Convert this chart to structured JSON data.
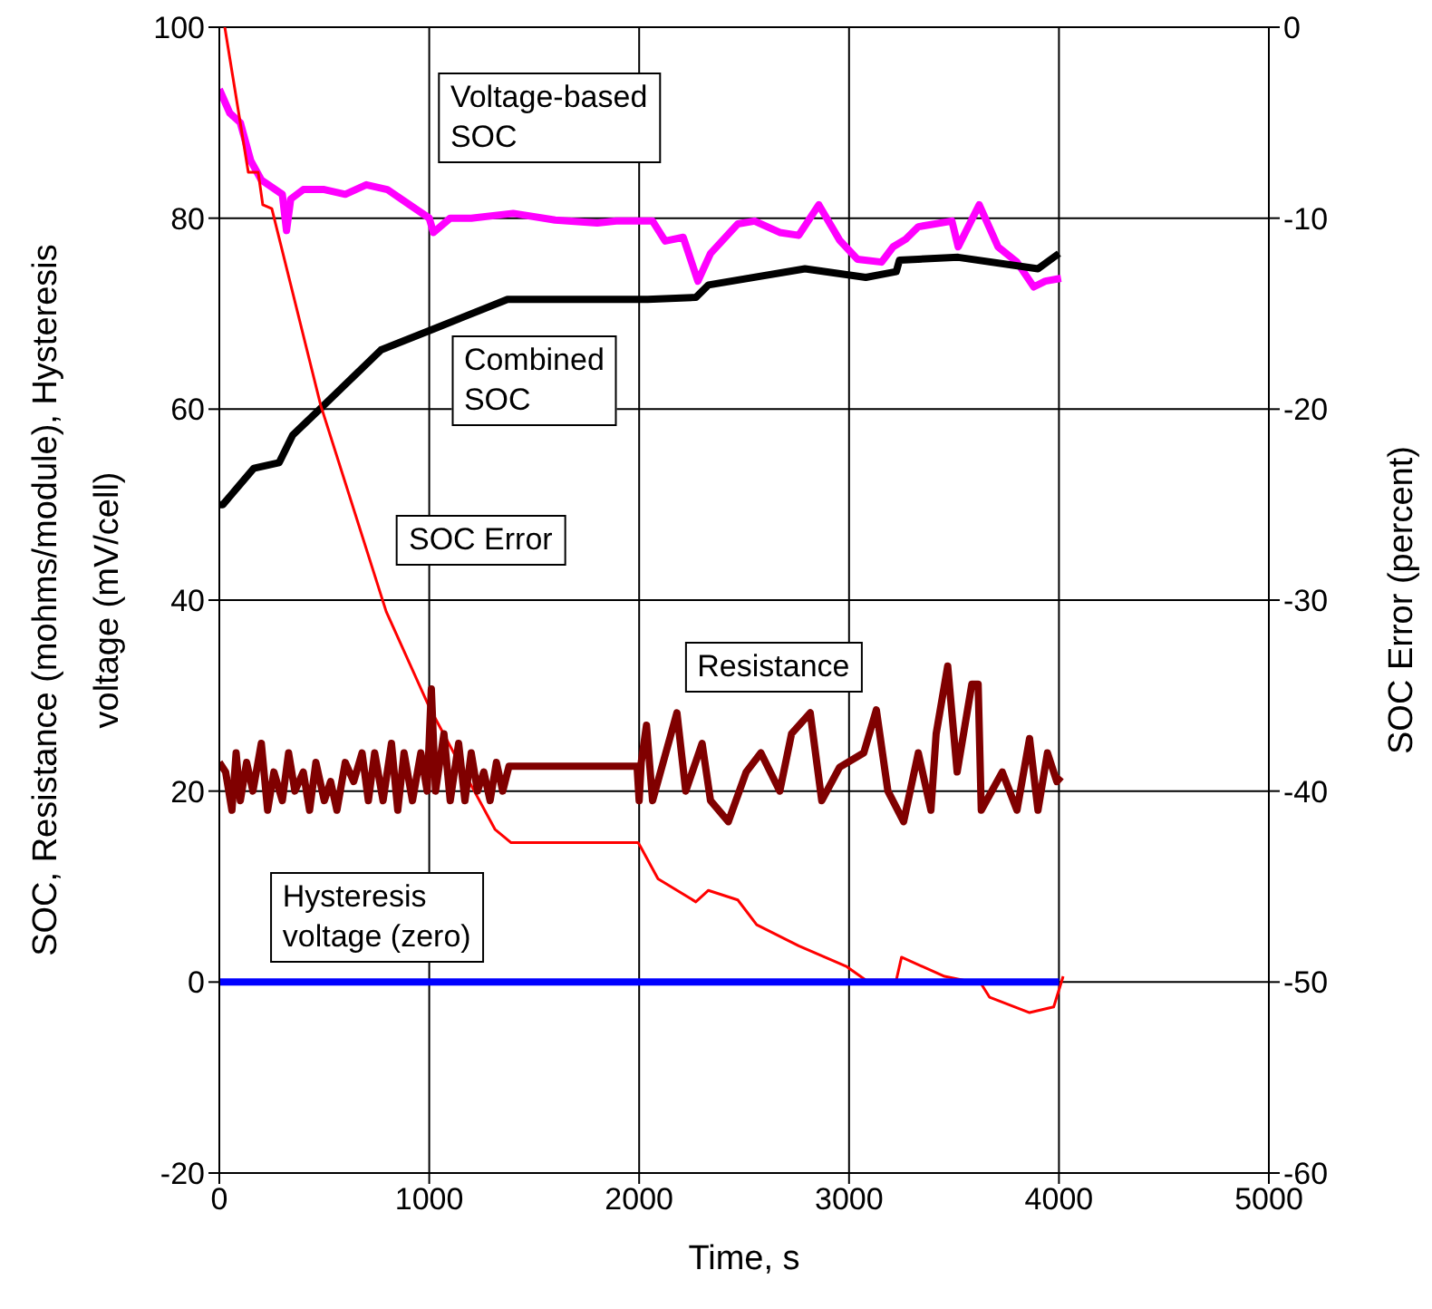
{
  "chart_data": {
    "type": "line",
    "xlabel": "Time, s",
    "ylabel": "SOC, Resistance (mohms/module), Hysteresis voltage (mV/cell)",
    "y2label": "SOC Error (percent)",
    "xlim": [
      0,
      5000
    ],
    "xticks": [
      0,
      1000,
      2000,
      3000,
      4000,
      5000
    ],
    "ylim": [
      -20,
      100
    ],
    "yticks": [
      -20,
      0,
      20,
      40,
      60,
      80,
      100
    ],
    "y2lim": [
      -60,
      0
    ],
    "y2ticks": [
      -60,
      -50,
      -40,
      -30,
      -20,
      -10,
      0
    ],
    "grid": true,
    "marker": "none",
    "line_style": "solid",
    "series": [
      {
        "name": "Voltage-based\nSOC",
        "color": "#ff00ff",
        "x": [
          0,
          50,
          100,
          150,
          200,
          300,
          320,
          340,
          400,
          500,
          600,
          700,
          800,
          900,
          1000,
          1020,
          1100,
          1200,
          1400,
          1600,
          1800,
          1891,
          2064,
          2124,
          2210,
          2280,
          2340,
          2470,
          2550,
          2670,
          2760,
          2856,
          2955,
          3040,
          3155,
          3210,
          3270,
          3330,
          3490,
          3520,
          3620,
          3710,
          3800,
          3880,
          3935,
          4010
        ],
        "values": [
          93.5,
          91,
          90,
          86,
          84,
          82.5,
          78.7,
          82,
          83,
          83,
          82.5,
          83.5,
          83,
          81.5,
          80,
          78.5,
          80,
          80,
          80.5,
          79.8,
          79.5,
          79.7,
          79.7,
          77.6,
          78,
          73.4,
          76.3,
          79.4,
          79.7,
          78.5,
          78.2,
          81.4,
          77.7,
          75.7,
          75.4,
          77,
          77.8,
          79.1,
          79.7,
          77,
          81.4,
          77,
          75.4,
          72.8,
          73.4,
          73.7
        ]
      },
      {
        "name": "Combined\nSOC",
        "color": "#000000",
        "x": [
          0,
          17,
          164,
          285,
          350,
          483,
          770,
          1055,
          1373,
          2040,
          2270,
          2330,
          2790,
          3080,
          3225,
          3240,
          3520,
          3900,
          4000
        ],
        "values": [
          50,
          50,
          53.8,
          54.4,
          57.3,
          60.1,
          66.2,
          68.7,
          71.5,
          71.5,
          71.7,
          73,
          74.7,
          73.8,
          74.4,
          75.6,
          75.9,
          74.7,
          76.3
        ]
      },
      {
        "name": "SOC Error",
        "color": "#ff0000",
        "axis": "y2",
        "x": [
          26,
          138,
          185,
          207,
          250,
          483,
          795,
          1000,
          1200,
          1313,
          1390,
          1995,
          2006,
          2090,
          2270,
          2330,
          2470,
          2560,
          2760,
          2990,
          3080,
          3225,
          3250,
          3455,
          3630,
          3670,
          3860,
          3975,
          4020
        ],
        "values": [
          0,
          -7.6,
          -7.6,
          -9.3,
          -9.5,
          -19.8,
          -30.6,
          -35.6,
          -39.7,
          -42,
          -42.7,
          -42.7,
          -42.9,
          -44.6,
          -45.8,
          -45.2,
          -45.7,
          -47,
          -48.1,
          -49.2,
          -49.9,
          -49.9,
          -48.7,
          -49.7,
          -50.1,
          -50.8,
          -51.6,
          -51.3,
          -49.7
        ]
      },
      {
        "name": "Resistance",
        "color": "#800000",
        "x": [
          0,
          30,
          60,
          80,
          100,
          130,
          160,
          200,
          230,
          260,
          300,
          330,
          360,
          400,
          430,
          460,
          500,
          530,
          560,
          600,
          640,
          680,
          710,
          740,
          780,
          820,
          850,
          880,
          920,
          960,
          990,
          1010,
          1030,
          1070,
          1100,
          1140,
          1170,
          1200,
          1230,
          1260,
          1290,
          1320,
          1350,
          1380,
          1990,
          2000,
          2010,
          2035,
          2064,
          2180,
          2222,
          2300,
          2340,
          2425,
          2510,
          2580,
          2670,
          2726,
          2815,
          2870,
          2955,
          3070,
          3130,
          3185,
          3260,
          3330,
          3390,
          3415,
          3470,
          3515,
          3585,
          3615,
          3630,
          3730,
          3800,
          3860,
          3900,
          3945,
          3990,
          4010
        ],
        "values": [
          23,
          22,
          18,
          24,
          19,
          23,
          20,
          25,
          18,
          22,
          19,
          24,
          20,
          22,
          18,
          23,
          19,
          21,
          18,
          23,
          21,
          24,
          19,
          24,
          19,
          25,
          18,
          24,
          19,
          24,
          20,
          30.7,
          20,
          26,
          19,
          25,
          19,
          24,
          20,
          22,
          19,
          23,
          20,
          22.6,
          22.6,
          19,
          23,
          26.9,
          19,
          28.2,
          20,
          25,
          19,
          16.8,
          22,
          24,
          20,
          26,
          28.2,
          19,
          22.5,
          24,
          28.5,
          20,
          16.8,
          24,
          18,
          26,
          33.1,
          22,
          31.2,
          31.2,
          18,
          22,
          18,
          25.5,
          18,
          24,
          21,
          21.5
        ]
      },
      {
        "name": "Hysteresis\nvoltage (zero)",
        "color": "#0000ff",
        "x": [
          0,
          4000
        ],
        "values": [
          0,
          0
        ]
      }
    ]
  }
}
